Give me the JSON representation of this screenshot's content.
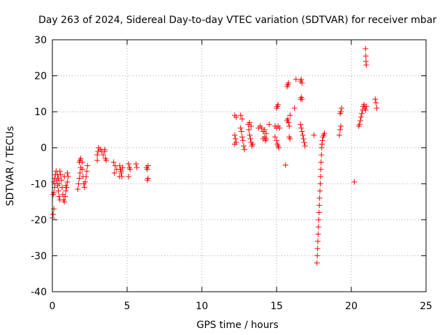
{
  "chart_data": {
    "type": "scatter",
    "title": "Day 263 of 2024, Sidereal Day-to-day VTEC variation (SDTVAR) for receiver mbar",
    "xlabel": "GPS time / hours",
    "ylabel": "SDTVAR / TECUs",
    "xlim": [
      0,
      25
    ],
    "ylim": [
      -40,
      30
    ],
    "xticks": [
      "0",
      "5",
      "10",
      "15",
      "20",
      "25"
    ],
    "yticks": [
      "-40",
      "-30",
      "-20",
      "-10",
      "0",
      "10",
      "20",
      "30"
    ],
    "grid": true,
    "marker": "+",
    "color": "#ff0000",
    "series": [
      {
        "name": "SDTVAR",
        "points": [
          [
            0.0,
            -19.5
          ],
          [
            0.05,
            -18.5
          ],
          [
            0.1,
            -17.0
          ],
          [
            0.05,
            -13.0
          ],
          [
            0.1,
            -12.5
          ],
          [
            0.15,
            -11.0
          ],
          [
            0.1,
            -9.5
          ],
          [
            0.15,
            -8.5
          ],
          [
            0.2,
            -7.5
          ],
          [
            0.25,
            -6.5
          ],
          [
            0.3,
            -9.0
          ],
          [
            0.35,
            -10.5
          ],
          [
            0.4,
            -12.0
          ],
          [
            0.45,
            -13.5
          ],
          [
            0.5,
            -14.5
          ],
          [
            0.35,
            -7.5
          ],
          [
            0.4,
            -8.5
          ],
          [
            0.45,
            -10.0
          ],
          [
            0.5,
            -6.5
          ],
          [
            0.55,
            -7.5
          ],
          [
            0.6,
            -9.0
          ],
          [
            0.65,
            -11.0
          ],
          [
            0.7,
            -13.0
          ],
          [
            0.75,
            -14.5
          ],
          [
            0.8,
            -15.0
          ],
          [
            0.85,
            -13.5
          ],
          [
            0.9,
            -12.0
          ],
          [
            0.95,
            -11.0
          ],
          [
            1.0,
            -9.5
          ],
          [
            1.05,
            -8.0
          ],
          [
            1.0,
            -7.0
          ],
          [
            0.8,
            -8.0
          ],
          [
            0.9,
            -10.5
          ],
          [
            1.7,
            -11.5
          ],
          [
            1.75,
            -10.0
          ],
          [
            1.8,
            -8.5
          ],
          [
            1.85,
            -7.0
          ],
          [
            1.9,
            -5.5
          ],
          [
            1.8,
            -4.0
          ],
          [
            1.85,
            -3.5
          ],
          [
            1.9,
            -3.0
          ],
          [
            2.0,
            -4.0
          ],
          [
            2.0,
            -6.0
          ],
          [
            2.05,
            -8.0
          ],
          [
            2.1,
            -10.0
          ],
          [
            2.15,
            -11.0
          ],
          [
            2.2,
            -9.5
          ],
          [
            2.25,
            -8.0
          ],
          [
            2.3,
            -6.5
          ],
          [
            2.35,
            -5.0
          ],
          [
            3.0,
            -3.5
          ],
          [
            3.0,
            -2.0
          ],
          [
            3.05,
            -1.0
          ],
          [
            3.1,
            0.0
          ],
          [
            3.2,
            -0.5
          ],
          [
            3.3,
            -1.0
          ],
          [
            3.4,
            -2.0
          ],
          [
            3.5,
            -1.0
          ],
          [
            3.55,
            -3.0
          ],
          [
            3.6,
            -3.5
          ],
          [
            3.5,
            -0.5
          ],
          [
            4.1,
            -4.0
          ],
          [
            4.2,
            -5.0
          ],
          [
            4.3,
            -6.0
          ],
          [
            4.15,
            -7.0
          ],
          [
            4.5,
            -5.0
          ],
          [
            4.55,
            -6.0
          ],
          [
            4.6,
            -7.0
          ],
          [
            4.65,
            -8.0
          ],
          [
            4.7,
            -5.5
          ],
          [
            4.5,
            -8.0
          ],
          [
            4.6,
            -6.5
          ],
          [
            5.1,
            -4.5
          ],
          [
            5.15,
            -5.5
          ],
          [
            5.2,
            -6.0
          ],
          [
            5.1,
            -8.0
          ],
          [
            5.6,
            -4.5
          ],
          [
            5.65,
            -5.5
          ],
          [
            6.3,
            -5.5
          ],
          [
            6.35,
            -6.0
          ],
          [
            6.4,
            -5.0
          ],
          [
            6.4,
            -8.5
          ],
          [
            6.35,
            -9.0
          ],
          [
            12.2,
            9.0
          ],
          [
            12.3,
            8.5
          ],
          [
            12.2,
            3.5
          ],
          [
            12.25,
            2.5
          ],
          [
            12.3,
            1.5
          ],
          [
            12.2,
            1.0
          ],
          [
            12.6,
            9.0
          ],
          [
            12.7,
            8.0
          ],
          [
            12.6,
            5.5
          ],
          [
            12.65,
            4.5
          ],
          [
            12.7,
            3.0
          ],
          [
            12.75,
            2.0
          ],
          [
            12.8,
            0.5
          ],
          [
            12.85,
            -0.5
          ],
          [
            13.1,
            6.5
          ],
          [
            13.2,
            7.0
          ],
          [
            13.3,
            6.0
          ],
          [
            13.15,
            5.0
          ],
          [
            13.2,
            3.5
          ],
          [
            13.25,
            2.5
          ],
          [
            13.3,
            1.5
          ],
          [
            13.35,
            0.5
          ],
          [
            13.4,
            1.0
          ],
          [
            13.8,
            5.5
          ],
          [
            13.9,
            6.0
          ],
          [
            14.0,
            5.5
          ],
          [
            14.1,
            4.5
          ],
          [
            14.2,
            5.0
          ],
          [
            14.3,
            4.0
          ],
          [
            14.1,
            2.5
          ],
          [
            14.2,
            3.0
          ],
          [
            14.25,
            2.0
          ],
          [
            14.3,
            2.5
          ],
          [
            14.5,
            6.5
          ],
          [
            14.9,
            6.0
          ],
          [
            15.0,
            5.5
          ],
          [
            15.1,
            6.0
          ],
          [
            15.2,
            5.5
          ],
          [
            15.0,
            11.0
          ],
          [
            15.05,
            11.5
          ],
          [
            15.1,
            12.0
          ],
          [
            15.0,
            2.0
          ],
          [
            15.05,
            1.0
          ],
          [
            15.1,
            0.5
          ],
          [
            15.15,
            0.0
          ],
          [
            14.9,
            3.0
          ],
          [
            15.6,
            -4.8
          ],
          [
            15.7,
            17.0
          ],
          [
            15.75,
            17.5
          ],
          [
            15.8,
            18.0
          ],
          [
            15.7,
            7.5
          ],
          [
            15.75,
            8.0
          ],
          [
            15.8,
            7.0
          ],
          [
            15.85,
            6.0
          ],
          [
            15.9,
            9.0
          ],
          [
            15.9,
            2.5
          ],
          [
            15.85,
            3.0
          ],
          [
            16.2,
            11.0
          ],
          [
            16.3,
            19.0
          ],
          [
            16.6,
            18.5
          ],
          [
            16.65,
            19.0
          ],
          [
            16.7,
            18.0
          ],
          [
            16.6,
            13.5
          ],
          [
            16.65,
            14.0
          ],
          [
            16.7,
            13.5
          ],
          [
            16.6,
            6.5
          ],
          [
            16.65,
            5.5
          ],
          [
            16.7,
            4.5
          ],
          [
            16.75,
            3.5
          ],
          [
            16.8,
            2.5
          ],
          [
            16.85,
            1.5
          ],
          [
            16.9,
            0.5
          ],
          [
            17.5,
            3.5
          ],
          [
            17.7,
            -32.0
          ],
          [
            17.72,
            -30.0
          ],
          [
            17.74,
            -28.0
          ],
          [
            17.76,
            -26.0
          ],
          [
            17.78,
            -24.0
          ],
          [
            17.8,
            -22.0
          ],
          [
            17.82,
            -20.0
          ],
          [
            17.84,
            -18.0
          ],
          [
            17.86,
            -16.0
          ],
          [
            17.88,
            -14.0
          ],
          [
            17.9,
            -12.0
          ],
          [
            17.92,
            -10.0
          ],
          [
            17.94,
            -8.0
          ],
          [
            17.96,
            -6.0
          ],
          [
            17.98,
            -4.0
          ],
          [
            18.0,
            -2.0
          ],
          [
            18.02,
            0.0
          ],
          [
            18.04,
            1.0
          ],
          [
            18.06,
            2.0
          ],
          [
            18.1,
            3.0
          ],
          [
            18.15,
            3.5
          ],
          [
            18.2,
            4.0
          ],
          [
            19.2,
            3.5
          ],
          [
            19.25,
            5.0
          ],
          [
            19.3,
            6.0
          ],
          [
            19.25,
            9.5
          ],
          [
            19.3,
            10.0
          ],
          [
            19.35,
            11.0
          ],
          [
            20.2,
            -9.5
          ],
          [
            20.5,
            6.0
          ],
          [
            20.55,
            6.5
          ],
          [
            20.6,
            7.5
          ],
          [
            20.65,
            8.5
          ],
          [
            20.7,
            9.5
          ],
          [
            20.75,
            10.5
          ],
          [
            20.8,
            11.5
          ],
          [
            20.85,
            12.0
          ],
          [
            20.9,
            11.0
          ],
          [
            20.95,
            10.5
          ],
          [
            21.0,
            11.5
          ],
          [
            20.95,
            27.5
          ],
          [
            20.97,
            25.5
          ],
          [
            20.98,
            24.0
          ],
          [
            21.0,
            23.0
          ],
          [
            21.6,
            13.5
          ],
          [
            21.65,
            12.5
          ],
          [
            21.7,
            11.0
          ]
        ]
      }
    ]
  }
}
